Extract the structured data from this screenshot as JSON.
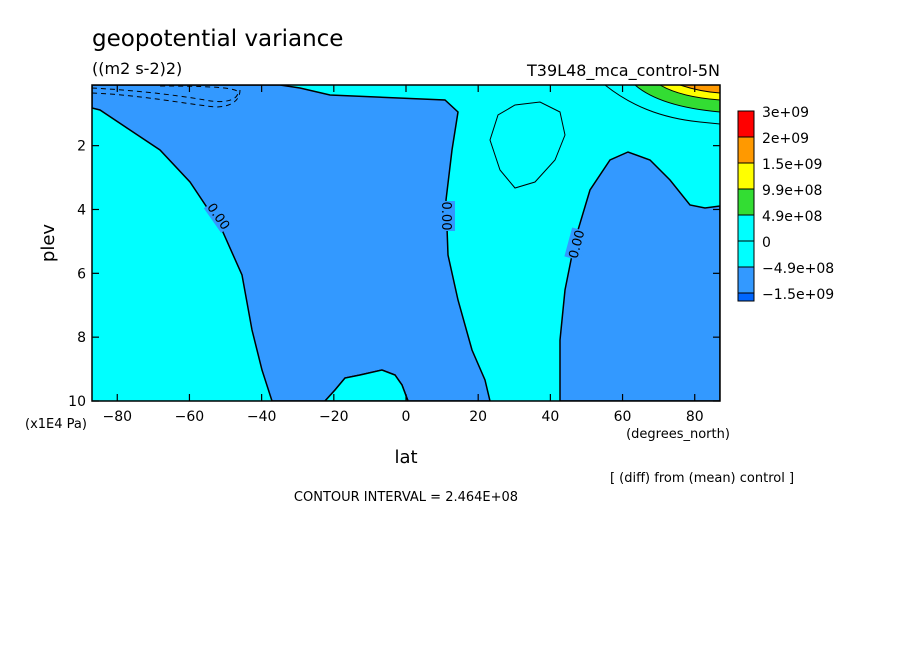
{
  "chart_data": {
    "type": "heatmap",
    "title": "geopotential variance",
    "units": "((m2 s-2)2)",
    "run_label": "T39L48_mca_control-5N",
    "xlabel": "lat",
    "xunits": "(degrees_north)",
    "ylabel": "plev",
    "yunits": "(x1E4 Pa)",
    "xlim": [
      -87,
      87
    ],
    "ylim": [
      0.1,
      10
    ],
    "y_inverted": true,
    "xticks": [
      -80,
      -60,
      -40,
      -20,
      0,
      20,
      40,
      60,
      80
    ],
    "xtick_labels": [
      "−80",
      "−60",
      "−40",
      "−20",
      "0",
      "20",
      "40",
      "60",
      "80"
    ],
    "yticks": [
      2,
      4,
      6,
      8,
      10
    ],
    "ytick_labels": [
      "2",
      "4",
      "6",
      "8",
      "10"
    ],
    "contour_labels": [
      "0.00",
      "0.00",
      "0.00"
    ],
    "contour_interval_text": "CONTOUR INTERVAL = 2.464E+08",
    "diff_note": "[ (diff) from (mean) control ]",
    "legend_position": "right",
    "colorbar": [
      {
        "label": "3e+09",
        "color": "#ff0000"
      },
      {
        "label": "2e+09",
        "color": "#ff9900"
      },
      {
        "label": "1.5e+09",
        "color": "#ffff00"
      },
      {
        "label": "9.9e+08",
        "color": "#33dd33"
      },
      {
        "label": "4.9e+08",
        "color": "#00ffff"
      },
      {
        "label": "0",
        "color": "#00ffff"
      },
      {
        "label": "−4.9e+08",
        "color": "#3399ff"
      },
      {
        "label": "−1.5e+09",
        "color": "#0066ff"
      }
    ],
    "regions": [
      {
        "name": "negative-band",
        "level": "-4.9e+08 to 0",
        "color": "#3399ff"
      },
      {
        "name": "equatorial-positive",
        "level": "0 to 4.9e+08",
        "color": "#00ffff"
      },
      {
        "name": "tropical-negative",
        "level": "-4.9e+08 to 0",
        "color": "#3399ff"
      },
      {
        "name": "polar-maximum",
        "level": "9.9e+08 to 3e+09",
        "color": "#33dd33"
      }
    ],
    "grid": false
  }
}
